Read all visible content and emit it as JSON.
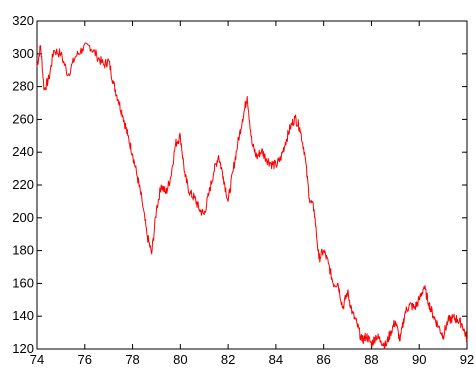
{
  "chart_data": {
    "type": "line",
    "title": "",
    "xlabel": "",
    "ylabel": "",
    "xlim": [
      74,
      92
    ],
    "ylim": [
      120,
      320
    ],
    "x_ticks": [
      "74",
      "76",
      "78",
      "80",
      "82",
      "84",
      "86",
      "88",
      "90",
      "92"
    ],
    "y_ticks": [
      "120",
      "140",
      "160",
      "180",
      "200",
      "220",
      "240",
      "260",
      "280",
      "300",
      "320"
    ],
    "grid": false,
    "legend": "none",
    "series": [
      {
        "color": "#ff0000",
        "x": [
          74.0,
          74.15,
          74.3,
          74.5,
          74.7,
          75.0,
          75.3,
          75.6,
          75.9,
          76.2,
          76.5,
          76.8,
          77.0,
          77.2,
          77.4,
          77.6,
          77.8,
          78.0,
          78.2,
          78.4,
          78.6,
          78.8,
          79.0,
          79.2,
          79.4,
          79.6,
          79.8,
          80.0,
          80.2,
          80.4,
          80.6,
          80.8,
          81.0,
          81.2,
          81.4,
          81.6,
          81.8,
          82.0,
          82.2,
          82.4,
          82.6,
          82.8,
          83.0,
          83.2,
          83.4,
          83.6,
          83.8,
          84.0,
          84.2,
          84.4,
          84.6,
          84.8,
          85.0,
          85.2,
          85.4,
          85.6,
          85.8,
          86.0,
          86.2,
          86.4,
          86.6,
          86.8,
          87.0,
          87.2,
          87.4,
          87.6,
          87.8,
          88.0,
          88.2,
          88.4,
          88.6,
          88.8,
          89.0,
          89.2,
          89.4,
          89.6,
          89.8,
          90.0,
          90.2,
          90.4,
          90.6,
          90.8,
          91.0,
          91.2,
          91.4,
          91.6,
          91.8,
          92.0
        ],
        "values": [
          292,
          305,
          278,
          285,
          302,
          300,
          287,
          298,
          303,
          305,
          299,
          293,
          296,
          282,
          272,
          262,
          250,
          239,
          225,
          210,
          190,
          178,
          205,
          220,
          215,
          225,
          245,
          250,
          225,
          215,
          212,
          205,
          202,
          215,
          228,
          238,
          225,
          210,
          228,
          245,
          260,
          274,
          245,
          237,
          241,
          236,
          233,
          232,
          236,
          246,
          255,
          261,
          255,
          240,
          212,
          205,
          175,
          180,
          172,
          160,
          160,
          145,
          155,
          142,
          135,
          125,
          128,
          123,
          128,
          125,
          122,
          130,
          137,
          125,
          142,
          147,
          145,
          150,
          158,
          148,
          140,
          134,
          128,
          137,
          139,
          138,
          135,
          126
        ]
      }
    ]
  }
}
